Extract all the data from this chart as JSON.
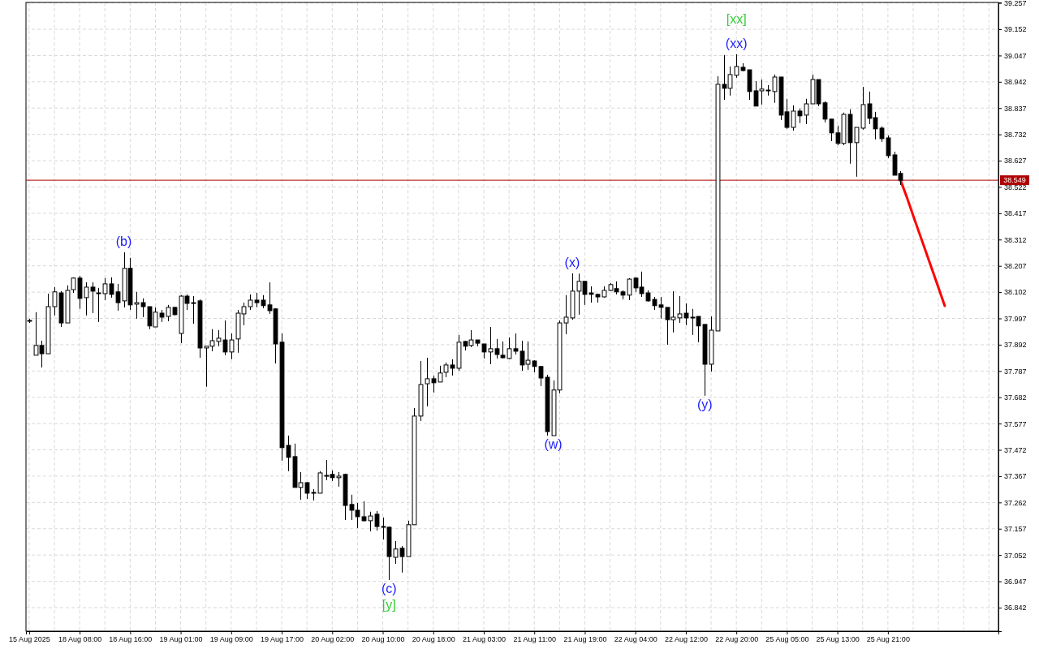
{
  "chart_data": {
    "type": "candlestick",
    "color": "#000000",
    "grid": true,
    "categories": [
      "15 Aug 2025",
      null,
      null,
      null,
      null,
      null,
      null,
      null,
      "18 Aug 08:00",
      null,
      null,
      null,
      null,
      null,
      null,
      null,
      "18 Aug 16:00",
      null,
      null,
      null,
      null,
      null,
      null,
      null,
      "19 Aug 01:00",
      null,
      null,
      null,
      null,
      null,
      null,
      null,
      "19 Aug 09:00",
      null,
      null,
      null,
      null,
      null,
      null,
      null,
      "19 Aug 17:00",
      null,
      null,
      null,
      null,
      null,
      null,
      null,
      "20 Aug 02:00",
      null,
      null,
      null,
      null,
      null,
      null,
      null,
      "20 Aug 10:00",
      null,
      null,
      null,
      null,
      null,
      null,
      null,
      "20 Aug 18:00",
      null,
      null,
      null,
      null,
      null,
      null,
      null,
      "21 Aug 03:00",
      null,
      null,
      null,
      null,
      null,
      null,
      null,
      "21 Aug 11:00",
      null,
      null,
      null,
      null,
      null,
      null,
      null,
      "21 Aug 19:00",
      null,
      null,
      null,
      null,
      null,
      null,
      null,
      "22 Aug 04:00",
      null,
      null,
      null,
      null,
      null,
      null,
      null,
      "22 Aug 12:00",
      null,
      null,
      null,
      null,
      null,
      null,
      null,
      "22 Aug 20:00",
      null,
      null,
      null,
      null,
      null,
      null,
      null,
      "25 Aug 05:00",
      null,
      null,
      null,
      null,
      null,
      null,
      null,
      "25 Aug 13:00",
      null,
      null,
      null,
      null,
      null,
      null,
      null,
      "25 Aug 21:00",
      null,
      null,
      null,
      null,
      null,
      null,
      null,
      null,
      null,
      null,
      null,
      null,
      null,
      null,
      null,
      null,
      null
    ],
    "ohlc": [
      [
        37.986,
        37.996,
        37.979,
        37.989
      ],
      [
        37.85,
        38.022,
        37.85,
        37.889
      ],
      [
        37.889,
        37.908,
        37.801,
        37.856
      ],
      [
        37.856,
        38.096,
        37.856,
        38.044
      ],
      [
        38.044,
        38.122,
        38.009,
        38.103
      ],
      [
        38.099,
        38.106,
        37.963,
        37.979
      ],
      [
        37.979,
        38.129,
        37.979,
        38.109
      ],
      [
        38.112,
        38.161,
        38.099,
        38.158
      ],
      [
        38.158,
        38.167,
        38.035,
        38.077
      ],
      [
        38.08,
        38.141,
        38.009,
        38.122
      ],
      [
        38.122,
        38.141,
        38.018,
        38.106
      ],
      [
        38.099,
        38.119,
        37.983,
        38.096
      ],
      [
        38.096,
        38.158,
        38.07,
        38.135
      ],
      [
        38.135,
        38.161,
        38.08,
        38.093
      ],
      [
        38.103,
        38.135,
        38.028,
        38.06
      ],
      [
        38.067,
        38.261,
        38.041,
        38.197
      ],
      [
        38.197,
        38.239,
        38.031,
        38.051
      ],
      [
        38.054,
        38.103,
        37.996,
        38.06
      ],
      [
        38.06,
        38.077,
        38.002,
        38.044
      ],
      [
        38.044,
        38.044,
        37.954,
        37.967
      ],
      [
        37.963,
        38.041,
        37.963,
        38.022
      ],
      [
        38.018,
        38.031,
        37.983,
        38.002
      ],
      [
        38.005,
        38.051,
        37.986,
        38.041
      ],
      [
        38.041,
        38.044,
        38.009,
        38.012
      ],
      [
        37.937,
        38.09,
        37.898,
        38.086
      ],
      [
        38.086,
        38.093,
        38.031,
        38.057
      ],
      [
        38.06,
        38.086,
        37.976,
        38.057
      ],
      [
        38.067,
        38.073,
        37.84,
        37.879
      ],
      [
        37.879,
        37.886,
        37.724,
        37.886
      ],
      [
        37.886,
        37.954,
        37.866,
        37.908
      ],
      [
        37.905,
        37.95,
        37.886,
        37.918
      ],
      [
        37.911,
        37.989,
        37.85,
        37.863
      ],
      [
        37.863,
        37.937,
        37.834,
        37.911
      ],
      [
        37.915,
        38.031,
        37.86,
        38.018
      ],
      [
        38.015,
        38.06,
        37.97,
        38.044
      ],
      [
        38.044,
        38.093,
        38.031,
        38.07
      ],
      [
        38.07,
        38.099,
        38.041,
        38.06
      ],
      [
        38.07,
        38.09,
        38.038,
        38.048
      ],
      [
        38.051,
        38.141,
        38.015,
        38.028
      ],
      [
        38.035,
        38.038,
        37.817,
        37.895
      ],
      [
        37.902,
        37.937,
        37.429,
        37.481
      ],
      [
        37.49,
        37.529,
        37.387,
        37.442
      ],
      [
        37.445,
        37.497,
        37.322,
        37.322
      ],
      [
        37.322,
        37.383,
        37.273,
        37.341
      ],
      [
        37.341,
        37.344,
        37.276,
        37.299
      ],
      [
        37.302,
        37.315,
        37.27,
        37.302
      ],
      [
        37.299,
        37.387,
        37.299,
        37.38
      ],
      [
        37.37,
        37.432,
        37.351,
        37.37
      ],
      [
        37.374,
        37.39,
        37.348,
        37.361
      ],
      [
        37.361,
        37.383,
        37.325,
        37.367
      ],
      [
        37.374,
        37.377,
        37.192,
        37.25
      ],
      [
        37.254,
        37.293,
        37.192,
        37.231
      ],
      [
        37.231,
        37.26,
        37.16,
        37.205
      ],
      [
        37.205,
        37.267,
        37.186,
        37.189
      ],
      [
        37.189,
        37.225,
        37.147,
        37.208
      ],
      [
        37.215,
        37.228,
        37.15,
        37.166
      ],
      [
        37.166,
        37.202,
        37.114,
        37.163
      ],
      [
        37.163,
        37.166,
        36.952,
        37.046
      ],
      [
        37.043,
        37.108,
        37.017,
        37.076
      ],
      [
        37.079,
        37.088,
        36.982,
        37.046
      ],
      [
        37.046,
        37.189,
        37.046,
        37.173
      ],
      [
        37.173,
        37.639,
        37.173,
        37.607
      ],
      [
        37.607,
        37.827,
        37.587,
        37.733
      ],
      [
        37.736,
        37.84,
        37.646,
        37.756
      ],
      [
        37.756,
        37.769,
        37.701,
        37.74
      ],
      [
        37.743,
        37.808,
        37.743,
        37.779
      ],
      [
        37.782,
        37.821,
        37.762,
        37.811
      ],
      [
        37.811,
        37.834,
        37.769,
        37.798
      ],
      [
        37.798,
        37.931,
        37.788,
        37.902
      ],
      [
        37.905,
        37.908,
        37.869,
        37.886
      ],
      [
        37.889,
        37.95,
        37.882,
        37.911
      ],
      [
        37.911,
        37.911,
        37.886,
        37.898
      ],
      [
        37.895,
        37.895,
        37.837,
        37.863
      ],
      [
        37.863,
        37.963,
        37.814,
        37.876
      ],
      [
        37.876,
        37.915,
        37.837,
        37.853
      ],
      [
        37.85,
        37.905,
        37.837,
        37.84
      ],
      [
        37.837,
        37.921,
        37.834,
        37.876
      ],
      [
        37.876,
        37.937,
        37.853,
        37.866
      ],
      [
        37.866,
        37.908,
        37.788,
        37.811
      ],
      [
        37.814,
        37.905,
        37.792,
        37.83
      ],
      [
        37.827,
        37.83,
        37.782,
        37.805
      ],
      [
        37.805,
        37.805,
        37.727,
        37.759
      ],
      [
        37.762,
        37.772,
        37.529,
        37.545
      ],
      [
        37.529,
        37.749,
        37.529,
        37.711
      ],
      [
        37.711,
        37.989,
        37.698,
        37.979
      ],
      [
        37.979,
        38.09,
        37.934,
        38.002
      ],
      [
        37.999,
        38.177,
        37.992,
        38.106
      ],
      [
        38.106,
        38.176,
        38.012,
        38.145
      ],
      [
        38.145,
        38.145,
        38.051,
        38.093
      ],
      [
        38.099,
        38.125,
        38.06,
        38.093
      ],
      [
        38.093,
        38.096,
        38.06,
        38.083
      ],
      [
        38.083,
        38.125,
        38.08,
        38.109
      ],
      [
        38.109,
        38.138,
        38.106,
        38.132
      ],
      [
        38.116,
        38.145,
        38.093,
        38.103
      ],
      [
        38.103,
        38.109,
        38.073,
        38.09
      ],
      [
        38.09,
        38.158,
        38.07,
        38.154
      ],
      [
        38.158,
        38.161,
        38.103,
        38.119
      ],
      [
        38.122,
        38.184,
        38.083,
        38.096
      ],
      [
        38.099,
        38.109,
        38.064,
        38.067
      ],
      [
        38.073,
        38.083,
        38.031,
        38.048
      ],
      [
        38.051,
        38.083,
        37.996,
        38.041
      ],
      [
        38.041,
        38.041,
        37.892,
        37.992
      ],
      [
        37.992,
        38.106,
        37.941,
        38.002
      ],
      [
        37.999,
        38.086,
        37.979,
        38.015
      ],
      [
        38.018,
        38.057,
        37.97,
        37.999
      ],
      [
        38.002,
        38.035,
        37.931,
        38.002
      ],
      [
        38.005,
        38.005,
        37.902,
        37.967
      ],
      [
        37.973,
        37.973,
        37.688,
        37.814
      ],
      [
        37.814,
        38.005,
        37.785,
        37.95
      ],
      [
        37.947,
        38.964,
        37.947,
        38.932
      ],
      [
        38.932,
        39.049,
        38.87,
        38.916
      ],
      [
        38.916,
        39.003,
        38.887,
        38.971
      ],
      [
        38.968,
        39.052,
        38.958,
        39.003
      ],
      [
        39.0,
        39.016,
        38.984,
        38.987
      ],
      [
        38.99,
        38.99,
        38.87,
        38.903
      ],
      [
        38.906,
        38.945,
        38.845,
        38.845
      ],
      [
        38.906,
        38.951,
        38.851,
        38.913
      ],
      [
        38.909,
        38.929,
        38.887,
        38.909
      ],
      [
        38.903,
        38.971,
        38.858,
        38.961
      ],
      [
        38.961,
        38.961,
        38.789,
        38.809
      ],
      [
        38.822,
        38.874,
        38.754,
        38.76
      ],
      [
        38.76,
        38.848,
        38.747,
        38.825
      ],
      [
        38.825,
        38.835,
        38.777,
        38.806
      ],
      [
        38.809,
        38.874,
        38.773,
        38.854
      ],
      [
        38.854,
        38.971,
        38.854,
        38.951
      ],
      [
        38.951,
        38.951,
        38.845,
        38.854
      ],
      [
        38.858,
        38.864,
        38.78,
        38.793
      ],
      [
        38.793,
        38.793,
        38.705,
        38.738
      ],
      [
        38.738,
        38.767,
        38.689,
        38.696
      ],
      [
        38.696,
        38.819,
        38.689,
        38.812
      ],
      [
        38.812,
        38.832,
        38.615,
        38.699
      ],
      [
        38.699,
        38.76,
        38.563,
        38.76
      ],
      [
        38.757,
        38.922,
        38.751,
        38.851
      ],
      [
        38.854,
        38.903,
        38.773,
        38.796
      ],
      [
        38.799,
        38.822,
        38.712,
        38.754
      ],
      [
        38.757,
        38.764,
        38.702,
        38.715
      ],
      [
        38.718,
        38.728,
        38.637,
        38.647
      ],
      [
        38.65,
        38.663,
        38.569,
        38.569
      ],
      [
        38.576,
        38.585,
        38.53,
        38.549
      ],
      null,
      null,
      null,
      null,
      null,
      null,
      null,
      null,
      null,
      null,
      null,
      null,
      null,
      null,
      null
    ],
    "series": [
      {
        "type": "line",
        "color": "#ff0000",
        "values": [
          null,
          null,
          null,
          null,
          null,
          null,
          null,
          null,
          null,
          null,
          null,
          null,
          null,
          null,
          null,
          null,
          null,
          null,
          null,
          null,
          null,
          null,
          null,
          null,
          null,
          null,
          null,
          null,
          null,
          null,
          null,
          null,
          null,
          null,
          null,
          null,
          null,
          null,
          null,
          null,
          null,
          null,
          null,
          null,
          null,
          null,
          null,
          null,
          null,
          null,
          null,
          null,
          null,
          null,
          null,
          null,
          null,
          null,
          null,
          null,
          null,
          null,
          null,
          null,
          null,
          null,
          null,
          null,
          null,
          null,
          null,
          null,
          null,
          null,
          null,
          null,
          null,
          null,
          null,
          null,
          null,
          null,
          null,
          null,
          null,
          null,
          null,
          null,
          null,
          null,
          null,
          null,
          null,
          null,
          null,
          null,
          null,
          null,
          null,
          null,
          null,
          null,
          null,
          null,
          null,
          null,
          null,
          null,
          null,
          null,
          null,
          null,
          null,
          null,
          null,
          null,
          null,
          null,
          null,
          null,
          null,
          null,
          null,
          null,
          null,
          null,
          null,
          null,
          null,
          null,
          null,
          null,
          null,
          null,
          null,
          null,
          null,
          null,
          38.549,
          38.481,
          38.408,
          38.336,
          38.264,
          38.192,
          38.12,
          38.047,
          null,
          null,
          null,
          null,
          null,
          null,
          null,
          null
        ]
      }
    ],
    "ylim": [
      36.748,
      39.259
    ],
    "yticks": [
      36.842,
      36.947,
      37.052,
      37.157,
      37.262,
      37.367,
      37.472,
      37.577,
      37.682,
      37.787,
      37.892,
      37.997,
      38.102,
      38.207,
      38.312,
      38.417,
      38.522,
      38.627,
      38.732,
      38.837,
      38.942,
      39.047,
      39.152,
      39.257
    ],
    "ref_lines": [
      {
        "axis": "y",
        "value": 38.549,
        "label": "38.549",
        "color": "#b00000"
      }
    ],
    "annotations": [
      {
        "text": "(b)",
        "y": 38.261
      },
      {
        "text": "(c)",
        "y": 36.952
      },
      {
        "text": "[y]",
        "y": 36.952
      },
      {
        "text": "(w)",
        "y": 37.529
      },
      {
        "text": "(x)",
        "y": 38.177
      },
      {
        "text": "(y)",
        "y": 37.688
      },
      {
        "text": "(xx)",
        "y": 39.052
      },
      {
        "text": "[xx]",
        "y": 39.052
      }
    ]
  }
}
